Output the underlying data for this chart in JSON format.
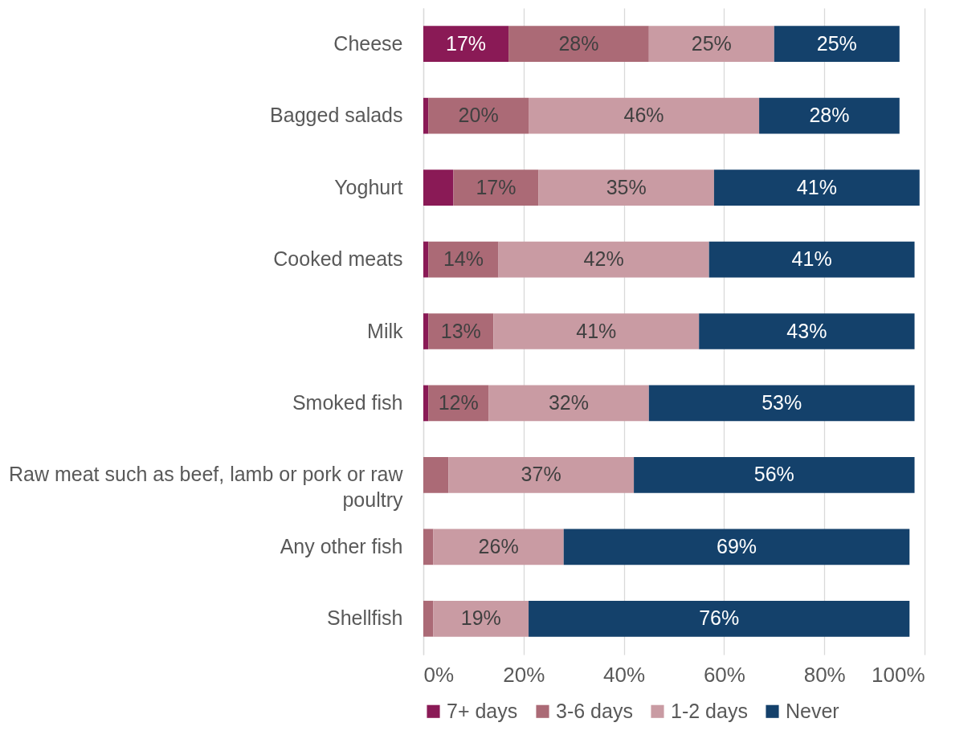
{
  "chart_data": {
    "type": "bar",
    "orientation": "horizontal",
    "stacked": true,
    "categories": [
      "Cheese",
      "Bagged salads",
      "Yoghurt",
      "Cooked meats",
      "Milk",
      "Smoked fish",
      "Raw meat such as beef, lamb or pork or raw poultry",
      "Any other fish ",
      "Shellfish"
    ],
    "series": [
      {
        "name": "7+ days",
        "color": "#8a1a56",
        "values": [
          17,
          1,
          6,
          1,
          1,
          1,
          0,
          0,
          0
        ],
        "value_labels": [
          "17%",
          null,
          null,
          null,
          null,
          null,
          null,
          null,
          null
        ]
      },
      {
        "name": "3-6 days",
        "color": "#ab6a76",
        "values": [
          28,
          20,
          17,
          14,
          13,
          12,
          5,
          2,
          2
        ],
        "value_labels": [
          "28%",
          "20%",
          "17%",
          "14%",
          "13%",
          "12%",
          null,
          null,
          null
        ]
      },
      {
        "name": "1-2 days",
        "color": "#c99ba3",
        "values": [
          25,
          46,
          35,
          42,
          41,
          32,
          37,
          26,
          19
        ],
        "value_labels": [
          "25%",
          "46%",
          "35%",
          "42%",
          "41%",
          "32%",
          "37%",
          "26%",
          "19%"
        ]
      },
      {
        "name": "Never",
        "color": "#14416b",
        "values": [
          25,
          28,
          41,
          41,
          43,
          53,
          56,
          69,
          76
        ],
        "value_labels": [
          "25%",
          "28%",
          "41%",
          "41%",
          "43%",
          "53%",
          "56%",
          "69%",
          "76%"
        ]
      }
    ],
    "xlim": [
      0,
      100
    ],
    "xticks": [
      {
        "value": 0,
        "label": "0%"
      },
      {
        "value": 20,
        "label": "20%"
      },
      {
        "value": 40,
        "label": "40%"
      },
      {
        "value": 60,
        "label": "60%"
      },
      {
        "value": 80,
        "label": "80%"
      },
      {
        "value": 100,
        "label": "100%"
      }
    ],
    "grid": "x",
    "legend": "bottom"
  }
}
